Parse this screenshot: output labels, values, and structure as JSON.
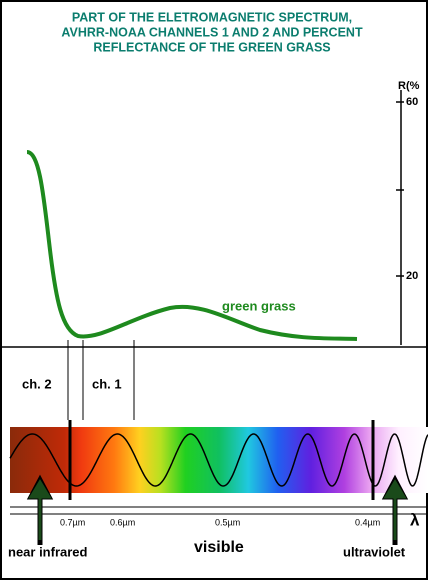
{
  "title": {
    "lines": [
      "PART OF THE ELETROMAGNETIC SPECTRUM,",
      "AVHRR-NOAA CHANNELS 1 AND 2 AND PERCENT",
      "REFLECTANCE OF THE GREEN GRASS"
    ]
  },
  "axis": {
    "label": "R(%",
    "ticks": [
      "60",
      "20"
    ]
  },
  "curve": {
    "label": "green grass"
  },
  "channels": [
    "ch. 2",
    "ch. 1"
  ],
  "wavelengths": [
    "0.7µm",
    "0.6µm",
    "0.5µm",
    "0.4µm"
  ],
  "lambda": "λ",
  "regions": [
    "near infrared",
    "visible",
    "ultraviolet"
  ]
}
